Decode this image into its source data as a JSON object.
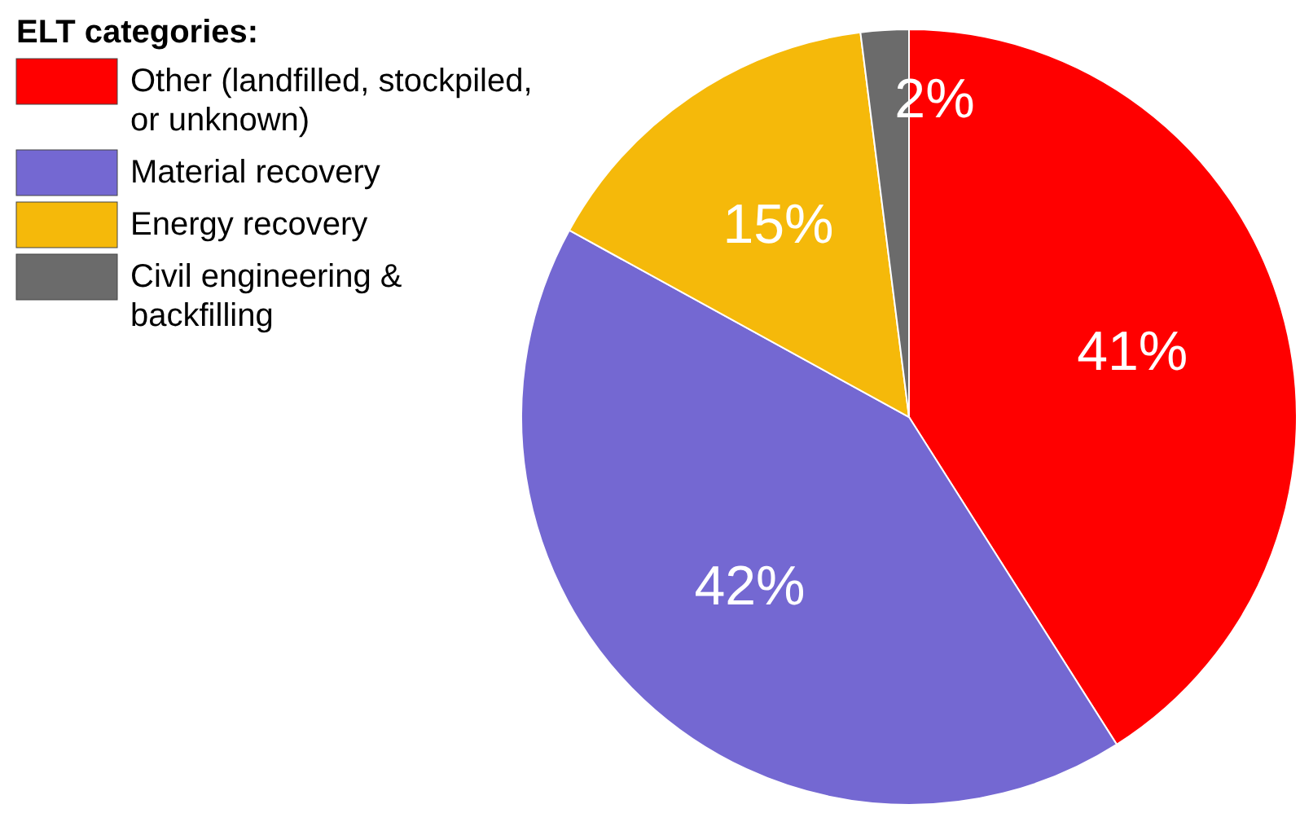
{
  "chart_data": {
    "type": "pie",
    "legend_title": "ELT categories:",
    "legend": "top left",
    "value_labels": [
      "41%",
      "42%",
      "15%",
      "2%"
    ],
    "categories": [
      "Other (landfilled, stockpiled, or unknown)",
      "Material recovery",
      "Energy recovery",
      "Civil engineering & backfilling"
    ],
    "values": [
      41,
      42,
      15,
      2
    ],
    "colors": [
      "#ff0000",
      "#7468d2",
      "#f5b90a",
      "#6b6b6b"
    ]
  }
}
